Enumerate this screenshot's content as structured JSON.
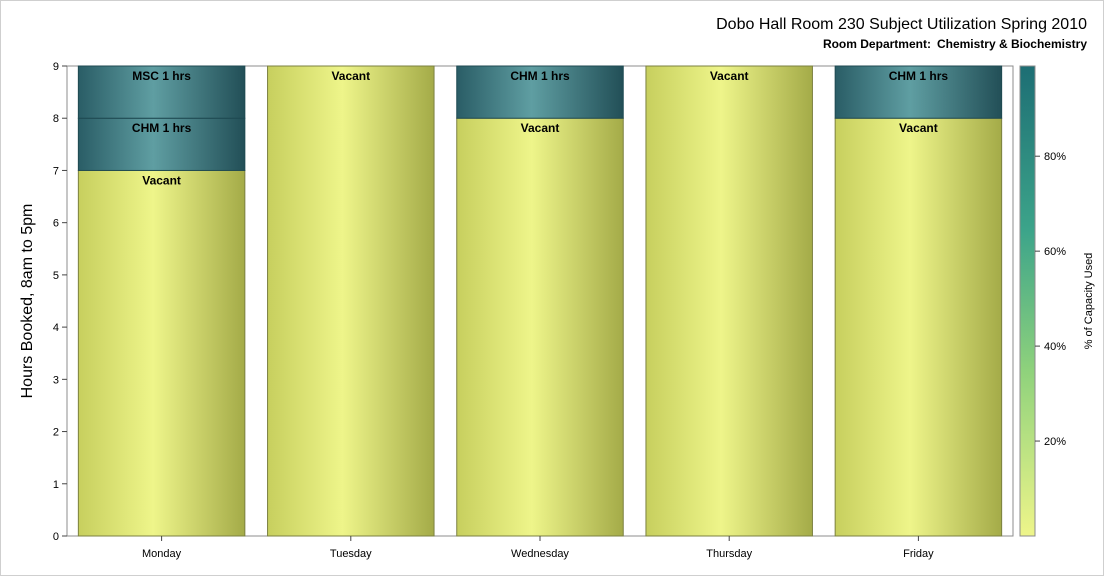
{
  "chart_data": {
    "type": "bar",
    "stacked": true,
    "title": "Dobo Hall Room 230 Subject Utilization Spring 2010",
    "subtitle_prefix": "Room Department:",
    "subtitle_value": "Chemistry & Biochemistry",
    "ylabel": "Hours Booked, 8am to 5pm",
    "ylim": [
      0,
      9
    ],
    "yticks": [
      0,
      1,
      2,
      3,
      4,
      5,
      6,
      7,
      8,
      9
    ],
    "categories": [
      "Monday",
      "Tuesday",
      "Wednesday",
      "Thursday",
      "Friday"
    ],
    "bars": [
      {
        "category": "Monday",
        "segments": [
          {
            "label": "Vacant",
            "hours": 7,
            "capacity": 0
          },
          {
            "label": "CHM 1 hrs",
            "hours": 1,
            "capacity": 1
          },
          {
            "label": "MSC 1 hrs",
            "hours": 1,
            "capacity": 1
          }
        ]
      },
      {
        "category": "Tuesday",
        "segments": [
          {
            "label": "Vacant",
            "hours": 9,
            "capacity": 0
          }
        ]
      },
      {
        "category": "Wednesday",
        "segments": [
          {
            "label": "Vacant",
            "hours": 8,
            "capacity": 0
          },
          {
            "label": "CHM 1 hrs",
            "hours": 1,
            "capacity": 1
          }
        ]
      },
      {
        "category": "Thursday",
        "segments": [
          {
            "label": "Vacant",
            "hours": 9,
            "capacity": 0
          }
        ]
      },
      {
        "category": "Friday",
        "segments": [
          {
            "label": "Vacant",
            "hours": 8,
            "capacity": 0
          },
          {
            "label": "CHM 1 hrs",
            "hours": 1,
            "capacity": 1
          }
        ]
      }
    ],
    "colorbar": {
      "label": "% of Capacity Used",
      "ticks": [
        "20%",
        "40%",
        "60%",
        "80%"
      ],
      "tick_values": [
        0.2,
        0.4,
        0.6,
        0.8
      ],
      "colors": [
        "#eef58a",
        "#7ec97a",
        "#2f9a86",
        "#1d6e74"
      ]
    },
    "grid": false,
    "legend_placement": "right"
  }
}
